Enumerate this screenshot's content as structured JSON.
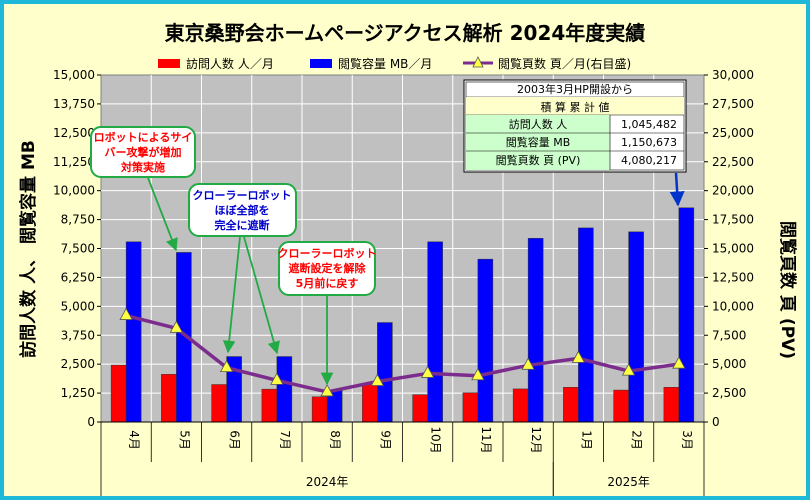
{
  "chart_data": {
    "type": "bar+line",
    "title": "東京桑野会ホームページアクセス解析 2024年度実績",
    "categories": [
      "4月",
      "5月",
      "6月",
      "7月",
      "8月",
      "9月",
      "10月",
      "11月",
      "12月",
      "1月",
      "2月",
      "3月"
    ],
    "year_groups": [
      {
        "label": "2024年",
        "from": 0,
        "to": 8
      },
      {
        "label": "2025年",
        "from": 9,
        "to": 11
      }
    ],
    "series": [
      {
        "name": "訪問人数 人／月",
        "axis": "left",
        "kind": "bar",
        "color": "#ff0000",
        "values": [
          2460,
          2060,
          1620,
          1420,
          1090,
          1620,
          1180,
          1260,
          1430,
          1500,
          1380,
          1500
        ]
      },
      {
        "name": "閲覧容量 MB／月",
        "axis": "left",
        "kind": "bar",
        "color": "#0000ff",
        "values": [
          7790,
          7330,
          2830,
          2830,
          1370,
          4300,
          7790,
          7040,
          7940,
          8390,
          8220,
          9260
        ]
      },
      {
        "name": "閲覧頁数 頁／月(右目盛)",
        "axis": "right",
        "kind": "line",
        "color": "#7b2c8c",
        "values": [
          9200,
          8100,
          4700,
          3600,
          2600,
          3500,
          4200,
          4000,
          4900,
          5500,
          4400,
          5000
        ]
      }
    ],
    "left_axis": {
      "label": "訪問人数 人、 閲覧容量 MB",
      "min": 0,
      "max": 15000,
      "ticks": [
        "0",
        "1,250",
        "2,500",
        "3,750",
        "5,000",
        "6,250",
        "7,500",
        "8,750",
        "10,000",
        "11,250",
        "12,500",
        "13,750",
        "15,000"
      ]
    },
    "right_axis": {
      "label": "閲覧頁数 頁 (PV)",
      "min": 0,
      "max": 30000,
      "ticks": [
        "0",
        "2,500",
        "5,000",
        "7,500",
        "10,000",
        "12,500",
        "15,000",
        "17,500",
        "20,000",
        "22,500",
        "25,000",
        "27,500",
        "30,000"
      ]
    },
    "grid": true,
    "legend": "top"
  },
  "summary_table": {
    "heading": "2003年3月HP開設から",
    "subheading": "積 算 累 計 値",
    "rows": [
      {
        "label": "訪問人数 人",
        "value": "1,045,482"
      },
      {
        "label": "閲覧容量 MB",
        "value": "1,150,673"
      },
      {
        "label": "閲覧頁数 頁 (PV)",
        "value": "4,080,217"
      }
    ]
  },
  "annotations": [
    {
      "lines": [
        "ロボットによるサイ",
        "バー攻撃が増加",
        "対策実施"
      ],
      "color": "#ff0000"
    },
    {
      "lines": [
        "クローラーロボット",
        "ほぼ全部を",
        "完全に遮断"
      ],
      "color": "#0000cc"
    },
    {
      "lines": [
        "クローラーロボット",
        "遮断設定を解除",
        "5月前に戻す"
      ],
      "color": "#ff0000"
    }
  ],
  "colors": {
    "frame": "#1fb8d8",
    "background": "#ffffcc",
    "plot_area": "#c0c0c0",
    "callout_border": "#22aa44",
    "arrow": "#22aa44",
    "marker": "#ffff44"
  }
}
